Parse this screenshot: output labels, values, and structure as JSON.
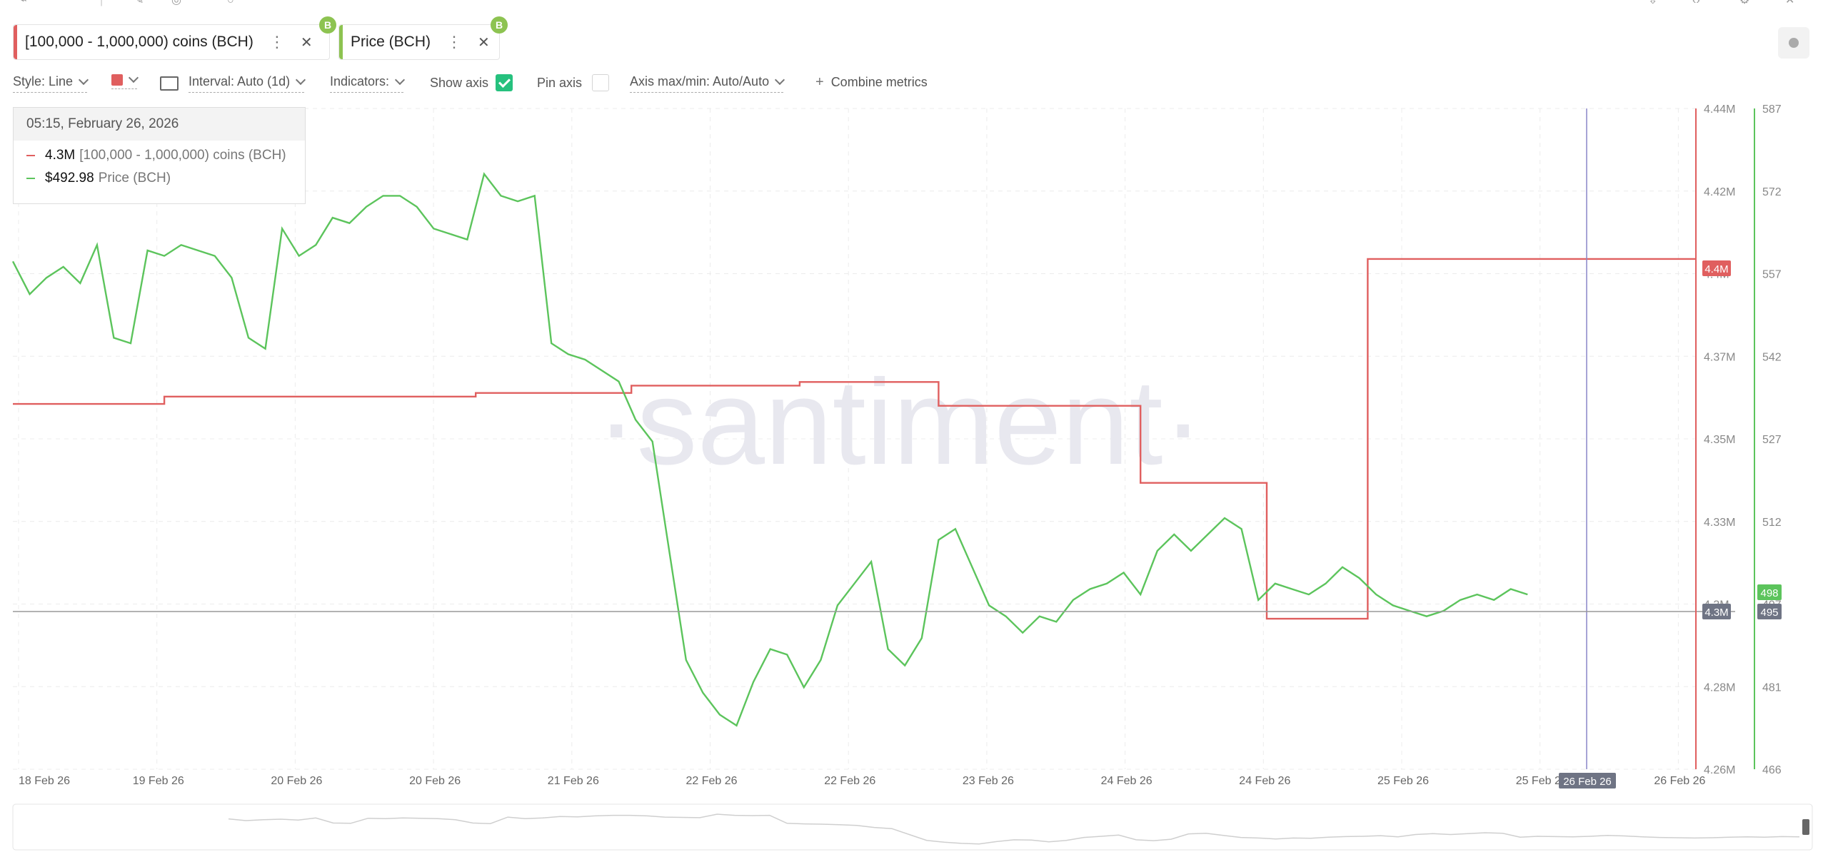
{
  "toolbar_top": {
    "icons": [
      "share-icon",
      "edit-icon",
      "alert-icon",
      "download-icon",
      "embed-icon",
      "settings-icon",
      "close-icon"
    ]
  },
  "tabs": [
    {
      "label": "[100,000 - 1,000,000) coins (BCH)",
      "color": "#e05f5f",
      "coin": "B"
    },
    {
      "label": "Price (BCH)",
      "color": "#8dc351",
      "coin": "B"
    }
  ],
  "controls": {
    "style": "Style: Line",
    "interval": "Interval: Auto (1d)",
    "indicators": "Indicators:",
    "show_axis": "Show axis",
    "pin_axis": "Pin axis",
    "axis_maxmin": "Axis max/min: Auto/Auto",
    "combine": "Combine metrics"
  },
  "tooltip": {
    "date": "05:15, February 26, 2026",
    "rows": [
      {
        "value": "4.3M",
        "name": "[100,000  - 1,000,000) coins (BCH)",
        "color": "#e05f5f"
      },
      {
        "value": "$492.98",
        "name": "Price (BCH)",
        "color": "#5cc45c"
      }
    ]
  },
  "watermark": "·santiment·",
  "chart_data": {
    "type": "line",
    "x_ticks": [
      "18 Feb 26",
      "19 Feb 26",
      "20 Feb 26",
      "20 Feb 26",
      "21 Feb 26",
      "22 Feb 26",
      "22 Feb 26",
      "23 Feb 26",
      "24 Feb 26",
      "24 Feb 26",
      "25 Feb 26",
      "25 Feb 26",
      "26 Feb 26"
    ],
    "crosshair_x_label": "26 Feb 26",
    "left_axis": {
      "ticks": [
        "4.44M",
        "4.42M",
        "4.4M",
        "4.37M",
        "4.35M",
        "4.33M",
        "4.3M",
        "4.28M",
        "4.26M"
      ],
      "range": [
        4.26,
        4.44
      ],
      "unit": "M"
    },
    "right_axis": {
      "ticks": [
        "587",
        "572",
        "557",
        "542",
        "527",
        "512",
        "497",
        "481",
        "466"
      ],
      "range": [
        466,
        587
      ]
    },
    "badges": {
      "holders_last": "4.4M",
      "holders_cross": "4.3M",
      "price_last": "498",
      "price_cross": "495"
    },
    "series": [
      {
        "name": "[100,000 - 1,000,000) coins (BCH)",
        "color": "#e05f5f",
        "x": [
          0,
          0.18,
          0.18,
          0.37,
          0.37,
          0.55,
          0.55,
          0.735,
          0.735,
          0.935,
          0.935,
          1.1,
          1.1,
          1.24,
          1.24,
          1.34,
          1.34,
          1.49,
          1.49,
          1.61,
          1.61,
          2.0
        ],
        "values": [
          4.3595,
          4.3595,
          4.3615,
          4.3615,
          4.3615,
          4.3615,
          4.3625,
          4.3625,
          4.3645,
          4.3645,
          4.3655,
          4.3655,
          4.359,
          4.359,
          4.359,
          4.359,
          4.338,
          4.338,
          4.301,
          4.301,
          4.399,
          4.399
        ]
      },
      {
        "name": "Price (BCH)",
        "color": "#5cc45c",
        "x": [
          0,
          0.02,
          0.04,
          0.06,
          0.08,
          0.1,
          0.12,
          0.14,
          0.16,
          0.18,
          0.2,
          0.22,
          0.24,
          0.26,
          0.28,
          0.3,
          0.32,
          0.34,
          0.36,
          0.38,
          0.4,
          0.42,
          0.44,
          0.46,
          0.48,
          0.5,
          0.52,
          0.54,
          0.56,
          0.58,
          0.6,
          0.62,
          0.64,
          0.66,
          0.68,
          0.7,
          0.72,
          0.74,
          0.76,
          0.78,
          0.8,
          0.82,
          0.84,
          0.86,
          0.88,
          0.9,
          0.92,
          0.94,
          0.96,
          0.98,
          1.0,
          1.02,
          1.04,
          1.06,
          1.08,
          1.1,
          1.12,
          1.14,
          1.16,
          1.18,
          1.2,
          1.22,
          1.24,
          1.26,
          1.28,
          1.3,
          1.32,
          1.34,
          1.36,
          1.38,
          1.4,
          1.42,
          1.44,
          1.46,
          1.48,
          1.5,
          1.52,
          1.54,
          1.56,
          1.58,
          1.6,
          1.62,
          1.64,
          1.66,
          1.68,
          1.7,
          1.72,
          1.74,
          1.76,
          1.78,
          1.8
        ],
        "values": [
          559,
          553,
          556,
          558,
          555,
          562,
          545,
          544,
          561,
          560,
          562,
          561,
          560,
          556,
          545,
          543,
          565,
          560,
          562,
          567,
          566,
          569,
          571,
          571,
          569,
          565,
          564,
          563,
          575,
          571,
          570,
          571,
          544,
          542,
          541,
          539,
          537,
          530,
          526,
          506,
          486,
          480,
          476,
          474,
          482,
          488,
          487,
          481,
          486,
          496,
          500,
          504,
          488,
          485,
          490,
          508,
          510,
          503,
          496,
          494,
          491,
          494,
          493,
          497,
          499,
          500,
          502,
          498,
          506,
          509,
          506,
          509,
          512,
          510,
          497,
          500,
          499,
          498,
          500,
          503,
          501,
          498,
          496,
          495,
          494,
          495,
          497,
          498,
          497,
          499,
          498
        ]
      }
    ]
  }
}
